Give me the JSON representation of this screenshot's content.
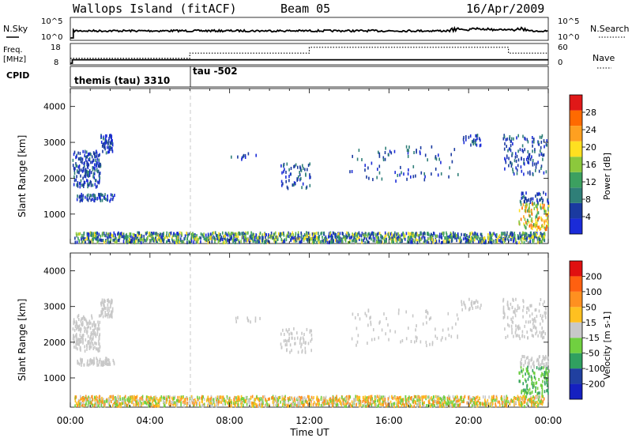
{
  "header": {
    "station": "Wallops Island (fitACF)",
    "beam": "Beam 05",
    "date": "16/Apr/2009"
  },
  "chart_data": [
    {
      "type": "line",
      "panel": "noise",
      "left_label": "N.Sky",
      "right_label": "N.Search",
      "left_ticks": [
        "10^5",
        "10^0"
      ],
      "right_ticks": [
        "10^5",
        "10^0"
      ],
      "series": [
        {
          "name": "N.Sky",
          "style": "solid"
        },
        {
          "name": "N.Search",
          "style": "dotted"
        }
      ]
    },
    {
      "type": "line",
      "panel": "frequency",
      "left_label": "Freq.",
      "left_unit": "[MHz]",
      "right_label": "Nave",
      "left_ticks": [
        18,
        8
      ],
      "right_ticks": [
        60,
        0
      ],
      "freq_ylim": [
        8,
        18
      ],
      "nave_ylim": [
        0,
        60
      ],
      "freq_series": [
        {
          "t0": 0.0,
          "t1": 0.1,
          "v": 8
        },
        {
          "t0": 0.1,
          "t1": 24.0,
          "v": 10
        }
      ],
      "nave_series": [
        {
          "t0": 0.0,
          "t1": 6.0,
          "v": 17
        },
        {
          "t0": 6.0,
          "t1": 12.0,
          "v": 35
        },
        {
          "t0": 12.0,
          "t1": 22.0,
          "v": 55
        },
        {
          "t0": 22.0,
          "t1": 24.0,
          "v": 35
        }
      ]
    },
    {
      "type": "table",
      "panel": "cpid",
      "label": "CPID",
      "segments": [
        {
          "start": 0.0,
          "text": "themis (tau) 3310"
        },
        {
          "start": 6.0,
          "text": "tau -502"
        }
      ]
    },
    {
      "type": "heatmap",
      "panel": "power",
      "ylabel": "Slant Range [km]",
      "yticks": [
        1000,
        2000,
        3000,
        4000
      ],
      "ylim": [
        180,
        4500
      ],
      "xlim": [
        0,
        24
      ],
      "colorbar": {
        "label": "Power [dB]",
        "ticks": [
          "4",
          "8",
          "12",
          "16",
          "20",
          "24",
          "28"
        ],
        "colors": [
          "#1a2bd8",
          "#1a3aa0",
          "#2f7f78",
          "#3ca060",
          "#8cc83c",
          "#ffe020",
          "#ffa020",
          "#ff6a00",
          "#e01818"
        ]
      }
    },
    {
      "type": "heatmap",
      "panel": "velocity",
      "ylabel": "Slant Range [km]",
      "yticks": [
        1000,
        2000,
        3000,
        4000
      ],
      "ylim": [
        180,
        4500
      ],
      "xlim": [
        0,
        24
      ],
      "xticks": [
        "00:00",
        "04:00",
        "08:00",
        "12:00",
        "16:00",
        "20:00",
        "00:00"
      ],
      "xlabel": "Time UT",
      "colorbar": {
        "label": "Velocity [m s-1]",
        "ticks": [
          "200",
          "100",
          "50",
          "15",
          "-15",
          "-50",
          "-100",
          "-200"
        ],
        "colors": [
          "#1520c0",
          "#2040a0",
          "#30a060",
          "#70d040",
          "#c8c8c8",
          "#ffc020",
          "#ff9020",
          "#ff6010",
          "#e01010"
        ]
      }
    }
  ]
}
